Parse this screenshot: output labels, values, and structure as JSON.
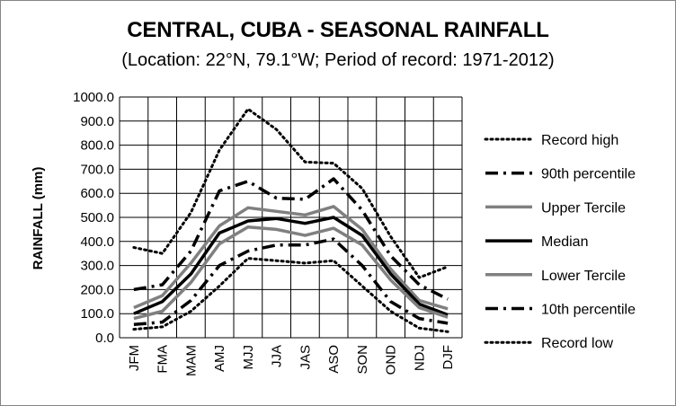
{
  "chart_data": {
    "type": "line",
    "title": "CENTRAL, CUBA - SEASONAL RAINFALL",
    "subtitle": "(Location: 22°N, 79.1°W; Period of record: 1971-2012)",
    "ylabel": "RAINFALL (mm)",
    "xlabel": "",
    "ylim": [
      0,
      1000
    ],
    "yticks": [
      "0.0",
      "100.0",
      "200.0",
      "300.0",
      "400.0",
      "500.0",
      "600.0",
      "700.0",
      "800.0",
      "900.0",
      "1000.0"
    ],
    "grid": true,
    "legend_position": "right",
    "categories": [
      "JFM",
      "FMA",
      "MAM",
      "AMJ",
      "MJJ",
      "JJA",
      "JAS",
      "ASO",
      "SON",
      "OND",
      "NDJ",
      "DJF"
    ],
    "series": [
      {
        "name": "Record high",
        "style": "dotted",
        "color": "#000000",
        "values": [
          375,
          350,
          520,
          780,
          950,
          865,
          730,
          725,
          620,
          420,
          250,
          295
        ]
      },
      {
        "name": "90th percentile",
        "style": "dashdot",
        "color": "#000000",
        "values": [
          200,
          220,
          360,
          610,
          650,
          580,
          575,
          660,
          530,
          340,
          220,
          160
        ]
      },
      {
        "name": "Upper Tercile",
        "style": "solid-gray",
        "color": "#808080",
        "values": [
          125,
          175,
          310,
          465,
          540,
          525,
          510,
          545,
          450,
          285,
          155,
          120
        ]
      },
      {
        "name": "Median",
        "style": "solid",
        "color": "#000000",
        "values": [
          100,
          150,
          265,
          435,
          485,
          495,
          475,
          500,
          425,
          265,
          140,
          95
        ]
      },
      {
        "name": "Lower Tercile",
        "style": "solid-gray",
        "color": "#808080",
        "values": [
          80,
          110,
          230,
          390,
          460,
          450,
          425,
          455,
          385,
          240,
          125,
          85
        ]
      },
      {
        "name": "10th percentile",
        "style": "dashdot",
        "color": "#000000",
        "values": [
          55,
          65,
          155,
          300,
          360,
          385,
          385,
          410,
          300,
          150,
          80,
          60
        ]
      },
      {
        "name": "Record low",
        "style": "dotted",
        "color": "#000000",
        "values": [
          35,
          45,
          110,
          215,
          330,
          320,
          310,
          320,
          215,
          110,
          40,
          25
        ]
      }
    ]
  }
}
